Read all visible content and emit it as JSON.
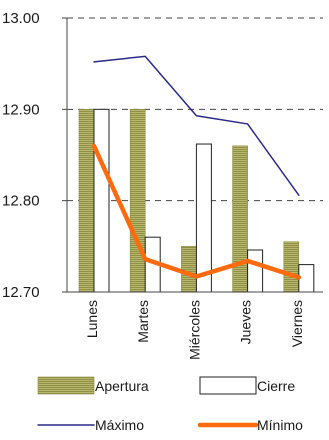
{
  "chart_data": {
    "type": "bar",
    "categories": [
      "Lunes",
      "Martes",
      "Miércoles",
      "Jueves",
      "Viernes"
    ],
    "ylim": [
      12.7,
      13.0
    ],
    "yticks": [
      "12.70",
      "12.80",
      "12.90",
      "13.00"
    ],
    "grid": "horizontal-dashed",
    "legend_position": "bottom",
    "bar_series": [
      {
        "name": "Apertura",
        "values": [
          12.9,
          12.9,
          12.75,
          12.86,
          12.755
        ],
        "color": "#9c9c55"
      },
      {
        "name": "Cierre",
        "values": [
          12.9,
          12.76,
          12.862,
          12.746,
          12.73
        ],
        "color": "#ffffff"
      }
    ],
    "line_series": [
      {
        "name": "Máximo",
        "values": [
          12.952,
          12.958,
          12.893,
          12.884,
          12.806
        ],
        "color": "#2a2a8a"
      },
      {
        "name": "Mínimo",
        "values": [
          12.86,
          12.736,
          12.717,
          12.734,
          12.716
        ],
        "color": "#ff6a0e"
      }
    ]
  }
}
